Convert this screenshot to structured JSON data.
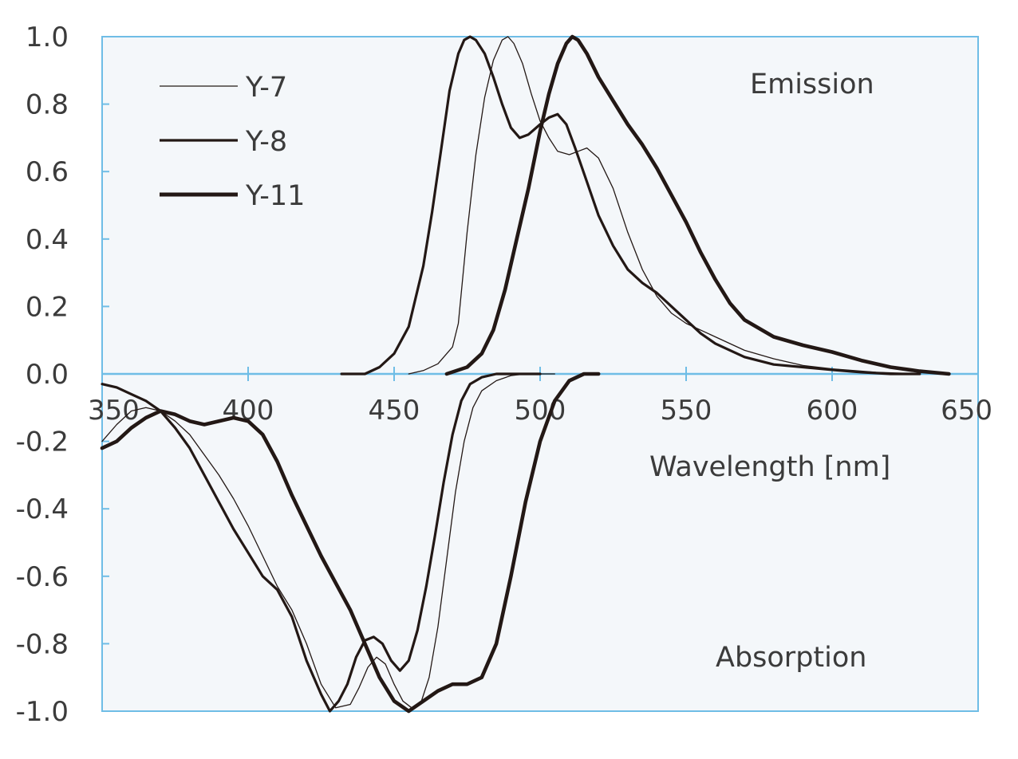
{
  "chart_data": {
    "type": "line",
    "title": "",
    "xlabel": "Wavelength [nm]",
    "ylabel": "",
    "xlim": [
      350,
      650
    ],
    "ylim": [
      -1.0,
      1.0
    ],
    "grid": false,
    "legend_position": "top-left",
    "x_ticks": [
      350,
      400,
      450,
      500,
      550,
      600,
      650
    ],
    "x_tick_labels": [
      "350",
      "400",
      "450",
      "500",
      "550",
      "600",
      "650"
    ],
    "y_ticks": [
      1.0,
      0.8,
      0.6,
      0.4,
      0.2,
      0.0,
      -0.2,
      -0.4,
      -0.6,
      -0.8,
      -1.0
    ],
    "y_tick_labels": [
      "1.0",
      "0.8",
      "0.6",
      "0.4",
      "0.2",
      "0.0",
      "-0.2",
      "-0.4",
      "-0.6",
      "-0.8",
      "-1.0"
    ],
    "annotations": {
      "emission": "Emission",
      "absorption": "Absorption"
    },
    "colors": {
      "line": "#231815",
      "plot_background": "#f4f7fa",
      "axis": "#6fbde6",
      "text": "#3b3b3b"
    },
    "series": [
      {
        "name": "Y-7",
        "weight": "thin",
        "emission": {
          "x": [
            455,
            460,
            465,
            470,
            472,
            475,
            478,
            481,
            484,
            487,
            489,
            491,
            494,
            497,
            500,
            503,
            506,
            510,
            513,
            516,
            520,
            525,
            530,
            535,
            540,
            545,
            550,
            560,
            570,
            580,
            590,
            600,
            615,
            630
          ],
          "y": [
            0.0,
            0.01,
            0.03,
            0.08,
            0.15,
            0.42,
            0.65,
            0.82,
            0.93,
            0.99,
            1.0,
            0.98,
            0.92,
            0.83,
            0.75,
            0.7,
            0.66,
            0.65,
            0.66,
            0.67,
            0.64,
            0.55,
            0.42,
            0.31,
            0.23,
            0.18,
            0.15,
            0.11,
            0.07,
            0.045,
            0.025,
            0.015,
            0.005,
            0.0
          ]
        },
        "absorption": {
          "x": [
            350,
            355,
            360,
            365,
            370,
            375,
            380,
            385,
            390,
            395,
            400,
            405,
            410,
            415,
            420,
            425,
            430,
            435,
            438,
            441,
            444,
            447,
            450,
            453,
            456,
            459,
            462,
            465,
            468,
            471,
            474,
            477,
            480,
            485,
            490,
            495,
            500,
            505
          ],
          "y": [
            -0.2,
            -0.15,
            -0.11,
            -0.1,
            -0.11,
            -0.14,
            -0.18,
            -0.24,
            -0.3,
            -0.37,
            -0.45,
            -0.54,
            -0.63,
            -0.7,
            -0.8,
            -0.92,
            -0.99,
            -0.98,
            -0.93,
            -0.87,
            -0.84,
            -0.86,
            -0.92,
            -0.97,
            -0.99,
            -0.98,
            -0.9,
            -0.75,
            -0.55,
            -0.35,
            -0.2,
            -0.1,
            -0.05,
            -0.02,
            -0.005,
            0.0,
            0.0,
            0.0
          ]
        }
      },
      {
        "name": "Y-8",
        "weight": "medium",
        "emission": {
          "x": [
            432,
            440,
            445,
            450,
            455,
            460,
            463,
            466,
            469,
            472,
            474,
            476,
            478,
            481,
            484,
            487,
            490,
            493,
            496,
            500,
            503,
            506,
            509,
            512,
            516,
            520,
            525,
            530,
            535,
            540,
            545,
            550,
            555,
            560,
            570,
            580,
            590,
            600,
            610,
            620,
            630
          ],
          "y": [
            0.0,
            0.0,
            0.02,
            0.06,
            0.14,
            0.32,
            0.48,
            0.66,
            0.84,
            0.95,
            0.99,
            1.0,
            0.99,
            0.95,
            0.88,
            0.8,
            0.73,
            0.7,
            0.71,
            0.74,
            0.76,
            0.77,
            0.74,
            0.67,
            0.57,
            0.47,
            0.38,
            0.31,
            0.27,
            0.24,
            0.2,
            0.16,
            0.12,
            0.09,
            0.05,
            0.028,
            0.02,
            0.012,
            0.005,
            0.0,
            0.0
          ]
        },
        "absorption": {
          "x": [
            350,
            355,
            360,
            365,
            370,
            375,
            380,
            385,
            390,
            395,
            400,
            405,
            410,
            415,
            420,
            425,
            428,
            431,
            434,
            437,
            440,
            443,
            446,
            449,
            452,
            455,
            458,
            461,
            464,
            467,
            470,
            473,
            476,
            480,
            485,
            490,
            495,
            500
          ],
          "y": [
            -0.03,
            -0.04,
            -0.06,
            -0.08,
            -0.11,
            -0.16,
            -0.22,
            -0.3,
            -0.38,
            -0.46,
            -0.53,
            -0.6,
            -0.64,
            -0.72,
            -0.85,
            -0.95,
            -1.0,
            -0.97,
            -0.92,
            -0.84,
            -0.79,
            -0.78,
            -0.8,
            -0.85,
            -0.88,
            -0.85,
            -0.76,
            -0.63,
            -0.48,
            -0.32,
            -0.18,
            -0.08,
            -0.03,
            -0.01,
            0.0,
            0.0,
            0.0,
            0.0
          ]
        }
      },
      {
        "name": "Y-11",
        "weight": "thick",
        "emission": {
          "x": [
            468,
            475,
            480,
            484,
            488,
            492,
            496,
            500,
            503,
            506,
            509,
            511,
            513,
            516,
            520,
            525,
            530,
            535,
            540,
            545,
            550,
            555,
            560,
            565,
            570,
            580,
            590,
            600,
            610,
            620,
            630,
            640
          ],
          "y": [
            0.0,
            0.02,
            0.06,
            0.13,
            0.25,
            0.4,
            0.55,
            0.72,
            0.83,
            0.92,
            0.98,
            1.0,
            0.99,
            0.95,
            0.88,
            0.81,
            0.74,
            0.68,
            0.61,
            0.53,
            0.45,
            0.36,
            0.28,
            0.21,
            0.16,
            0.11,
            0.085,
            0.065,
            0.04,
            0.02,
            0.008,
            0.0
          ]
        },
        "absorption": {
          "x": [
            350,
            355,
            360,
            365,
            370,
            375,
            380,
            385,
            390,
            395,
            400,
            405,
            410,
            415,
            420,
            425,
            430,
            435,
            440,
            445,
            450,
            455,
            460,
            465,
            470,
            475,
            480,
            485,
            490,
            495,
            500,
            505,
            510,
            515,
            520
          ],
          "y": [
            -0.22,
            -0.2,
            -0.16,
            -0.13,
            -0.11,
            -0.12,
            -0.14,
            -0.15,
            -0.14,
            -0.13,
            -0.14,
            -0.18,
            -0.26,
            -0.36,
            -0.45,
            -0.54,
            -0.62,
            -0.7,
            -0.8,
            -0.9,
            -0.97,
            -1.0,
            -0.97,
            -0.94,
            -0.92,
            -0.92,
            -0.9,
            -0.8,
            -0.6,
            -0.38,
            -0.2,
            -0.08,
            -0.02,
            0.0,
            0.0
          ]
        }
      }
    ]
  }
}
